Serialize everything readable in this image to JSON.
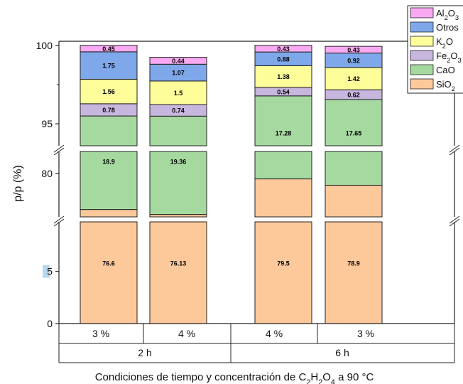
{
  "chart_data": {
    "type": "bar",
    "stacked": true,
    "ylabel": "p/p (%)",
    "xlabel_parts": [
      "Condiciones de tiempo y concentración de C",
      "2",
      "H",
      "2",
      "O",
      "4",
      " a 90 °C"
    ],
    "groups": [
      {
        "label": "2 h",
        "bars": [
          "3 %",
          "4 %"
        ]
      },
      {
        "label": "6 h",
        "bars": [
          "4 %",
          "3 %"
        ]
      }
    ],
    "categories": [
      "3 %",
      "4 %",
      "4 %",
      "3 %"
    ],
    "y_tick_labels": [
      "0",
      "5",
      "80",
      "95",
      "100"
    ],
    "y_tick_values": [
      0,
      5,
      80,
      95,
      100
    ],
    "axis_breaks": true,
    "series": [
      {
        "name": "SiO2",
        "name_parts": [
          "SiO",
          "2"
        ],
        "color": "#fdc99b",
        "values": [
          76.6,
          76.13,
          79.5,
          78.9
        ]
      },
      {
        "name": "CaO",
        "name_parts": [
          "CaO"
        ],
        "color": "#a6d9a0",
        "values": [
          18.9,
          19.36,
          17.28,
          17.65
        ]
      },
      {
        "name": "Fe2O3",
        "name_parts": [
          "Fe",
          "2",
          "O",
          "3"
        ],
        "color": "#c7b6dd",
        "values": [
          0.78,
          0.74,
          0.54,
          0.62
        ]
      },
      {
        "name": "K2O",
        "name_parts": [
          "K",
          "2",
          "O"
        ],
        "color": "#fdfd9a",
        "values": [
          1.56,
          1.5,
          1.38,
          1.42
        ]
      },
      {
        "name": "Otros",
        "name_parts": [
          "Otros"
        ],
        "color": "#7fa8ea",
        "values": [
          1.75,
          1.07,
          0.88,
          0.92
        ]
      },
      {
        "name": "Al2O3",
        "name_parts": [
          "Al",
          "2",
          "O",
          "3"
        ],
        "color": "#f9a9f2",
        "values": [
          0.45,
          0.44,
          0.43,
          0.43
        ]
      }
    ],
    "legend_position": "top-right",
    "grid": false
  }
}
